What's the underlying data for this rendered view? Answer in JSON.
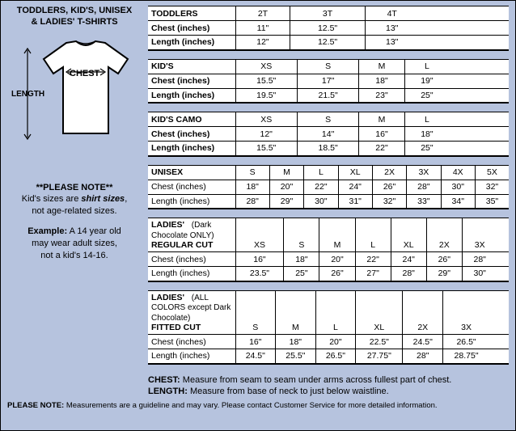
{
  "title_line1": "TODDLERS, KID'S, UNISEX",
  "title_line2": "& LADIES' T-SHIRTS",
  "diagram": {
    "length_label": "LENGTH",
    "chest_label": "CHEST"
  },
  "sidebar_note": {
    "header": "**PLEASE NOTE**",
    "line1a": "Kid's sizes are ",
    "line1b": "shirt sizes",
    "line1c": ",",
    "line2": "not age-related sizes.",
    "ex_label": "Example:",
    "ex1": " A 14 year old",
    "ex2": "may wear adult sizes,",
    "ex3": "not a kid's 14-16."
  },
  "tables": {
    "toddlers": {
      "name": "TODDLERS",
      "headers": [
        "2T",
        "3T",
        "4T"
      ],
      "rows": [
        {
          "label": "Chest (inches)",
          "cells": [
            "11\"",
            "12.5\"",
            "13\""
          ]
        },
        {
          "label": "Length (inches)",
          "cells": [
            "12\"",
            "12.5\"",
            "13\""
          ]
        }
      ]
    },
    "kids": {
      "name": "KID'S",
      "headers": [
        "XS",
        "S",
        "M",
        "L"
      ],
      "rows": [
        {
          "label": "Chest (inches)",
          "cells": [
            "15.5\"",
            "17\"",
            "18\"",
            "19\""
          ]
        },
        {
          "label": "Length (inches)",
          "cells": [
            "19.5\"",
            "21.5\"",
            "23\"",
            "25\""
          ]
        }
      ]
    },
    "kidscamo": {
      "name": "KID'S CAMO",
      "headers": [
        "XS",
        "S",
        "M",
        "L"
      ],
      "rows": [
        {
          "label": "Chest (inches)",
          "cells": [
            "12\"",
            "14\"",
            "16\"",
            "18\""
          ]
        },
        {
          "label": "Length (inches)",
          "cells": [
            "15.5\"",
            "18.5\"",
            "22\"",
            "25\""
          ]
        }
      ]
    },
    "unisex": {
      "name": "UNISEX",
      "headers": [
        "S",
        "M",
        "L",
        "XL",
        "2X",
        "3X",
        "4X",
        "5X"
      ],
      "rows": [
        {
          "label": "Chest (inches)",
          "cells": [
            "18\"",
            "20\"",
            "22\"",
            "24\"",
            "26\"",
            "28\"",
            "30\"",
            "32\""
          ]
        },
        {
          "label": "Length (inches)",
          "cells": [
            "28\"",
            "29\"",
            "30\"",
            "31\"",
            "32\"",
            "33\"",
            "34\"",
            "35\""
          ]
        }
      ]
    },
    "ladies_reg": {
      "name": "LADIES'",
      "sub": "(Dark Chocolate ONLY)",
      "name2": "REGULAR CUT",
      "headers": [
        "XS",
        "S",
        "M",
        "L",
        "XL",
        "2X",
        "3X"
      ],
      "rows": [
        {
          "label": "Chest (inches)",
          "cells": [
            "16\"",
            "18\"",
            "20\"",
            "22\"",
            "24\"",
            "26\"",
            "28\""
          ]
        },
        {
          "label": "Length (inches)",
          "cells": [
            "23.5\"",
            "25\"",
            "26\"",
            "27\"",
            "28\"",
            "29\"",
            "30\""
          ]
        }
      ]
    },
    "ladies_fit": {
      "name": "LADIES'",
      "sub": "(ALL COLORS except Dark Chocolate)",
      "name2": "FITTED CUT",
      "headers": [
        "S",
        "M",
        "L",
        "XL",
        "2X",
        "3X"
      ],
      "rows": [
        {
          "label": "Chest (inches)",
          "cells": [
            "16\"",
            "18\"",
            "20\"",
            "22.5\"",
            "24.5\"",
            "26.5\""
          ]
        },
        {
          "label": "Length (inches)",
          "cells": [
            "24.5\"",
            "25.5\"",
            "26.5\"",
            "27.75\"",
            "28\"",
            "28.75\""
          ]
        }
      ]
    }
  },
  "measure": {
    "chest_label": "CHEST:",
    "chest_text": " Measure from seam to seam under arms across fullest part of chest.",
    "length_label": "LENGTH:",
    "length_text": " Measure from base of neck to just below waistline."
  },
  "footnote_label": "PLEASE NOTE:",
  "footnote_text": " Measurements are a guideline and may vary. Please contact Customer Service for more detailed information.",
  "colors": {
    "page_bg": "#b6c3de",
    "border": "#000000",
    "cell_bg": "#ffffff"
  }
}
